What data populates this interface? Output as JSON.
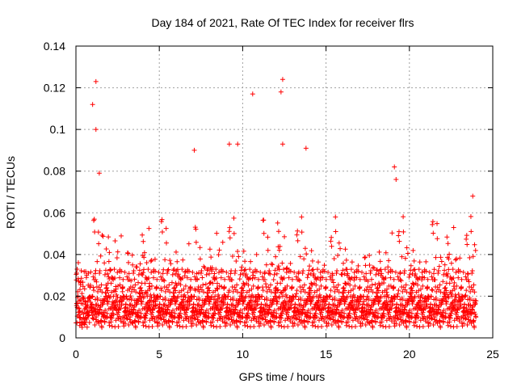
{
  "chart_data": {
    "type": "scatter",
    "title": "Day 184 of 2021, Rate Of TEC Index for receiver flrs",
    "xlabel": "GPS time / hours",
    "ylabel": "ROTI / TECUs",
    "xlim": [
      0,
      25
    ],
    "ylim": [
      0,
      0.14
    ],
    "xticks": [
      0,
      5,
      10,
      15,
      20,
      25
    ],
    "xtick_labels": [
      "0",
      "5",
      "10",
      "15",
      "20",
      "25"
    ],
    "yticks": [
      0,
      0.02,
      0.04,
      0.06,
      0.08,
      0.1,
      0.12,
      0.14
    ],
    "ytick_labels": [
      "0",
      "0.02",
      "0.04",
      "0.06",
      "0.08",
      "0.1",
      "0.12",
      "0.14"
    ],
    "grid": true,
    "marker": "+",
    "color": "#ff0000",
    "series": [
      {
        "name": "ROTI",
        "x_range": [
          0,
          24
        ],
        "typical_range": [
          0.005,
          0.045
        ],
        "notable_points": [
          {
            "x": 1.2,
            "y": 0.123
          },
          {
            "x": 1.0,
            "y": 0.112
          },
          {
            "x": 1.2,
            "y": 0.1
          },
          {
            "x": 1.4,
            "y": 0.079
          },
          {
            "x": 7.1,
            "y": 0.09
          },
          {
            "x": 9.2,
            "y": 0.093
          },
          {
            "x": 9.7,
            "y": 0.093
          },
          {
            "x": 10.6,
            "y": 0.117
          },
          {
            "x": 12.4,
            "y": 0.124
          },
          {
            "x": 12.3,
            "y": 0.118
          },
          {
            "x": 12.4,
            "y": 0.093
          },
          {
            "x": 13.8,
            "y": 0.091
          },
          {
            "x": 19.1,
            "y": 0.082
          },
          {
            "x": 19.2,
            "y": 0.076
          },
          {
            "x": 23.8,
            "y": 0.068
          }
        ]
      }
    ]
  }
}
